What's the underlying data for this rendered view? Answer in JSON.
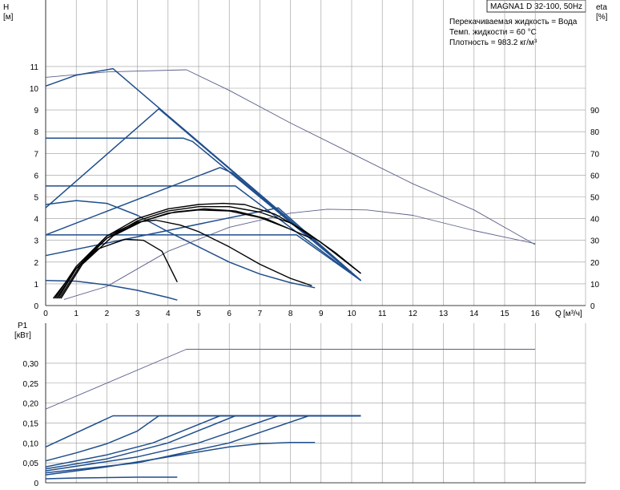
{
  "title_box": "MAGNA1 D 32-100, 50Hz",
  "fluid_info": [
    "Перекачиваемая жидкость = Вода",
    "Темп. жидкости = 60 °C",
    "Плотность = 983.2 кг/м³"
  ],
  "colors": {
    "blue": "#1f4e8c",
    "black": "#000000",
    "thin": "#5a5f8a",
    "grid": "#9a9a9a"
  },
  "chart_data": [
    {
      "type": "line",
      "name": "head",
      "ylabel": "H",
      "yunit": "[м]",
      "xlabel": "Q",
      "xunit": "[м³/ч]",
      "y2label": "eta",
      "y2unit": "[%]",
      "xlim": [
        0,
        16
      ],
      "ylim": [
        0,
        11
      ],
      "y2lim": [
        0,
        90
      ],
      "xticks": [
        0,
        1,
        2,
        3,
        4,
        5,
        6,
        7,
        8,
        9,
        10,
        11,
        12,
        13,
        14,
        15,
        16
      ],
      "yticks": [
        0,
        1,
        2,
        3,
        4,
        5,
        6,
        7,
        8,
        9,
        10,
        11
      ],
      "y2ticks": [
        10,
        20,
        30,
        40,
        50,
        60,
        70,
        80,
        90
      ],
      "grid": true,
      "series": [
        {
          "style": "thin",
          "axis": "left",
          "points": [
            [
              0,
              10.5
            ],
            [
              2,
              10.75
            ],
            [
              4.6,
              10.85
            ],
            [
              6,
              9.9
            ],
            [
              8,
              8.4
            ],
            [
              10,
              7.0
            ],
            [
              12,
              5.6
            ],
            [
              14,
              4.4
            ],
            [
              16,
              2.8
            ]
          ]
        },
        {
          "style": "thin",
          "axis": "right",
          "points": [
            [
              0.6,
              2.8
            ],
            [
              2,
              8.8
            ],
            [
              4,
              25
            ],
            [
              6,
              36
            ],
            [
              8,
              42.5
            ],
            [
              9.2,
              44.3
            ],
            [
              10.5,
              44
            ],
            [
              12,
              41.5
            ],
            [
              14,
              34.5
            ],
            [
              16,
              28.5
            ]
          ]
        },
        {
          "style": "blue",
          "axis": "left",
          "points": [
            [
              0,
              10.1
            ],
            [
              1,
              10.6
            ],
            [
              2.2,
              10.9
            ],
            [
              10.3,
              1.15
            ]
          ]
        },
        {
          "style": "blue",
          "axis": "left",
          "points": [
            [
              0,
              4.5
            ],
            [
              3.7,
              9.05
            ],
            [
              10.3,
              1.15
            ]
          ]
        },
        {
          "style": "blue",
          "axis": "left",
          "points": [
            [
              0,
              7.7
            ],
            [
              4.5,
              7.7
            ],
            [
              4.8,
              7.55
            ],
            [
              10.3,
              1.15
            ]
          ]
        },
        {
          "style": "blue",
          "axis": "left",
          "points": [
            [
              0,
              3.25
            ],
            [
              5.7,
              6.35
            ],
            [
              6.1,
              6.1
            ],
            [
              10.3,
              1.15
            ]
          ]
        },
        {
          "style": "blue",
          "axis": "left",
          "points": [
            [
              0,
              5.5
            ],
            [
              6.2,
              5.5
            ],
            [
              10.3,
              1.15
            ]
          ]
        },
        {
          "style": "blue",
          "axis": "left",
          "points": [
            [
              0,
              2.3
            ],
            [
              7.6,
              4.5
            ],
            [
              10.3,
              1.15
            ]
          ]
        },
        {
          "style": "blue",
          "axis": "left",
          "points": [
            [
              0,
              3.25
            ],
            [
              8.2,
              3.25
            ],
            [
              10.3,
              1.15
            ]
          ]
        },
        {
          "style": "blue",
          "axis": "left",
          "points": [
            [
              0,
              4.65
            ],
            [
              1,
              4.83
            ],
            [
              2,
              4.7
            ],
            [
              3,
              4.15
            ],
            [
              4,
              3.4
            ],
            [
              5,
              2.7
            ],
            [
              6,
              2.0
            ],
            [
              7,
              1.45
            ],
            [
              8,
              1.05
            ],
            [
              8.8,
              0.82
            ]
          ]
        },
        {
          "style": "blue",
          "axis": "left",
          "points": [
            [
              0,
              1.15
            ],
            [
              1,
              1.12
            ],
            [
              2,
              0.95
            ],
            [
              3,
              0.7
            ],
            [
              4,
              0.37
            ],
            [
              4.3,
              0.25
            ]
          ]
        },
        {
          "style": "black",
          "axis": "right",
          "points": [
            [
              0.3,
              3.3
            ],
            [
              1,
              18
            ],
            [
              2,
              32
            ],
            [
              3,
              38.5
            ],
            [
              3.6,
              39.3
            ],
            [
              4.4,
              37
            ],
            [
              5,
              34
            ],
            [
              6,
              27
            ],
            [
              7,
              19
            ],
            [
              8,
              12.5
            ],
            [
              8.7,
              9.1
            ]
          ]
        },
        {
          "style": "black",
          "axis": "right",
          "points": [
            [
              0.25,
              3.3
            ],
            [
              1,
              17
            ],
            [
              1.7,
              26
            ],
            [
              2.6,
              30.5
            ],
            [
              3.2,
              30
            ],
            [
              3.8,
              25
            ],
            [
              4.3,
              10.8
            ]
          ]
        },
        {
          "style": "black",
          "axis": "right",
          "points": [
            [
              0.4,
              3.3
            ],
            [
              1,
              17
            ],
            [
              2,
              32
            ],
            [
              3,
              40
            ],
            [
              4,
              44.5
            ],
            [
              5,
              46.5
            ],
            [
              5.8,
              47
            ],
            [
              6.5,
              46.5
            ],
            [
              7.5,
              42
            ],
            [
              8.5,
              34
            ],
            [
              9.5,
              24
            ],
            [
              10.3,
              14.8
            ]
          ]
        },
        {
          "style": "black",
          "axis": "right",
          "points": [
            [
              0.35,
              3.3
            ],
            [
              1,
              17
            ],
            [
              2,
              31
            ],
            [
              3,
              39
            ],
            [
              4,
              43.5
            ],
            [
              5,
              45.5
            ],
            [
              6,
              45.5
            ],
            [
              7,
              43
            ],
            [
              8,
              38
            ],
            [
              9,
              29
            ],
            [
              10.3,
              14.8
            ]
          ]
        },
        {
          "style": "black",
          "axis": "right",
          "points": [
            [
              0.45,
              3.3
            ],
            [
              1.2,
              20
            ],
            [
              2,
              31
            ],
            [
              3,
              38
            ],
            [
              4,
              42.5
            ],
            [
              5,
              44
            ],
            [
              6,
              43.5
            ],
            [
              7,
              40.5
            ],
            [
              7.9,
              35.7
            ]
          ]
        },
        {
          "style": "black",
          "axis": "right",
          "points": [
            [
              0.5,
              3.3
            ],
            [
              1.2,
              19
            ],
            [
              2.2,
              32
            ],
            [
              3.2,
              39
            ],
            [
              4.2,
              43
            ],
            [
              5.2,
              44.5
            ],
            [
              6.2,
              43.5
            ],
            [
              7.2,
              40
            ],
            [
              8.7,
              30.8
            ]
          ]
        }
      ]
    },
    {
      "type": "line",
      "name": "power",
      "ylabel": "P1",
      "yunit": "[кВт]",
      "xlim": [
        0,
        16
      ],
      "ylim": [
        0,
        0.35
      ],
      "yticks": [
        0,
        0.05,
        0.1,
        0.15,
        0.2,
        0.25,
        0.3
      ],
      "yticklabels": [
        "0",
        "0,05",
        "0,10",
        "0,15",
        "0,20",
        "0,25",
        "0,30"
      ],
      "grid": true,
      "series": [
        {
          "style": "thin",
          "points": [
            [
              0,
              0.185
            ],
            [
              4.6,
              0.335
            ],
            [
              16,
              0.335
            ]
          ]
        },
        {
          "style": "blue",
          "points": [
            [
              0,
              0.09
            ],
            [
              2.2,
              0.168
            ],
            [
              10.3,
              0.168
            ]
          ]
        },
        {
          "style": "blue",
          "points": [
            [
              0,
              0.055
            ],
            [
              1,
              0.075
            ],
            [
              2,
              0.098
            ],
            [
              3,
              0.13
            ],
            [
              3.7,
              0.168
            ],
            [
              10.3,
              0.168
            ]
          ]
        },
        {
          "style": "blue",
          "points": [
            [
              0,
              0.04
            ],
            [
              2,
              0.07
            ],
            [
              3.5,
              0.1
            ],
            [
              5.7,
              0.168
            ],
            [
              10.3,
              0.168
            ]
          ]
        },
        {
          "style": "blue",
          "points": [
            [
              0,
              0.035
            ],
            [
              2,
              0.06
            ],
            [
              4,
              0.1
            ],
            [
              6.2,
              0.168
            ],
            [
              10.3,
              0.168
            ]
          ]
        },
        {
          "style": "blue",
          "points": [
            [
              0,
              0.03
            ],
            [
              3,
              0.065
            ],
            [
              5,
              0.1
            ],
            [
              7.6,
              0.168
            ],
            [
              10.3,
              0.168
            ]
          ]
        },
        {
          "style": "blue",
          "points": [
            [
              0,
              0.025
            ],
            [
              3,
              0.05
            ],
            [
              6,
              0.1
            ],
            [
              8.6,
              0.168
            ],
            [
              10.3,
              0.168
            ]
          ]
        },
        {
          "style": "blue",
          "points": [
            [
              0,
              0.02
            ],
            [
              2,
              0.04
            ],
            [
              4,
              0.065
            ],
            [
              6,
              0.09
            ],
            [
              7,
              0.098
            ],
            [
              8,
              0.101
            ],
            [
              8.8,
              0.101
            ]
          ]
        },
        {
          "style": "blue",
          "points": [
            [
              0,
              0.01
            ],
            [
              1,
              0.012
            ],
            [
              2,
              0.013
            ],
            [
              3,
              0.014
            ],
            [
              4.3,
              0.014
            ]
          ]
        }
      ]
    }
  ]
}
